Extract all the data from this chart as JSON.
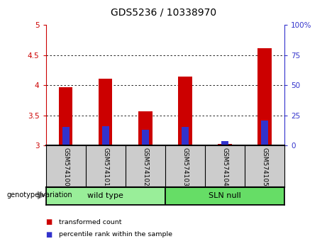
{
  "title": "GDS5236 / 10338970",
  "samples": [
    "GSM574100",
    "GSM574101",
    "GSM574102",
    "GSM574103",
    "GSM574104",
    "GSM574105"
  ],
  "transformed_count": [
    3.97,
    4.11,
    3.57,
    4.14,
    3.03,
    4.62
  ],
  "percentile_rank": [
    15.5,
    16.0,
    13.0,
    15.5,
    3.5,
    20.5
  ],
  "bar_bottom": 3.0,
  "ylim_left": [
    3.0,
    5.0
  ],
  "ylim_right": [
    0,
    100
  ],
  "yticks_left": [
    3.0,
    3.5,
    4.0,
    4.5,
    5.0
  ],
  "yticks_right": [
    0,
    25,
    50,
    75,
    100
  ],
  "red_color": "#cc0000",
  "blue_color": "#3333cc",
  "bar_width": 0.35,
  "blue_bar_width": 0.18,
  "groups": [
    {
      "label": "wild type",
      "indices": [
        0,
        1,
        2
      ],
      "color": "#99ee99"
    },
    {
      "label": "SLN null",
      "indices": [
        3,
        4,
        5
      ],
      "color": "#66dd66"
    }
  ],
  "group_label_prefix": "genotype/variation",
  "legend_items": [
    {
      "color": "#cc0000",
      "label": "transformed count"
    },
    {
      "color": "#3333cc",
      "label": "percentile rank within the sample"
    }
  ],
  "tick_label_area_color": "#cccccc",
  "title_fontsize": 10,
  "tick_fontsize": 7.5
}
